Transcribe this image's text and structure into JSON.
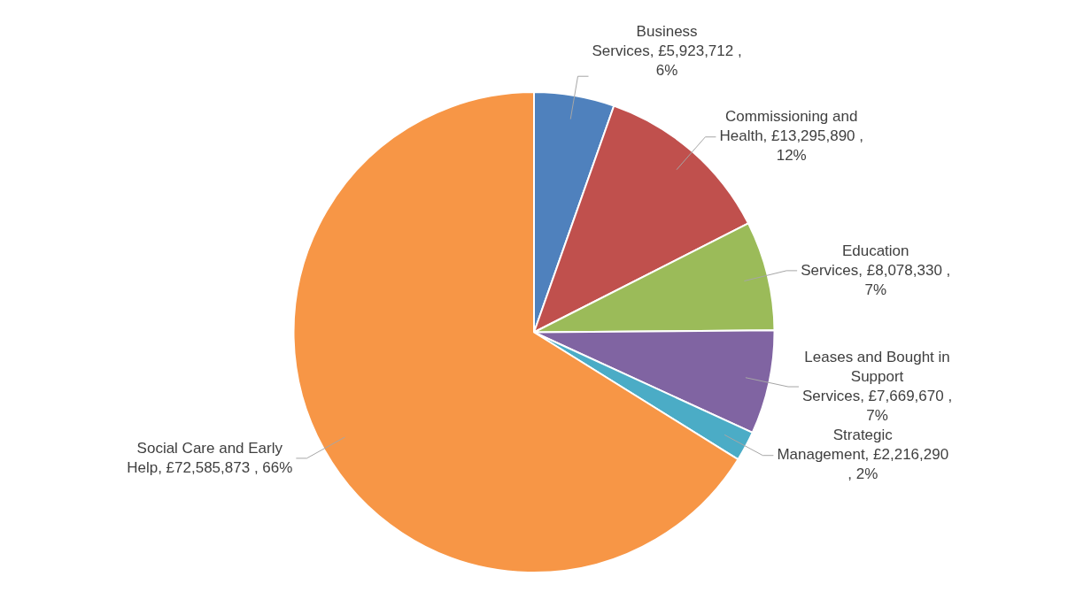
{
  "chart_data": {
    "type": "pie",
    "categories": [
      "Business Services",
      "Commissioning and Health",
      "Education Services",
      "Leases and Bought in Support Services",
      "Strategic Management",
      "Social Care and Early Help"
    ],
    "values": [
      5923712,
      13295890,
      8078330,
      7669670,
      2216290,
      72585873
    ],
    "colors": [
      "#4f81bd",
      "#c0504d",
      "#9bbb59",
      "#8064a2",
      "#4bacc6",
      "#f79646"
    ],
    "value_labels": [
      "£5,923,712 , 6%",
      "£13,295,890 , 12%",
      "£8,078,330 , 7%",
      "£7,669,670 , 7%",
      "£2,216,290 , 2%",
      "£72,585,873 , 66%"
    ],
    "legend": false
  }
}
